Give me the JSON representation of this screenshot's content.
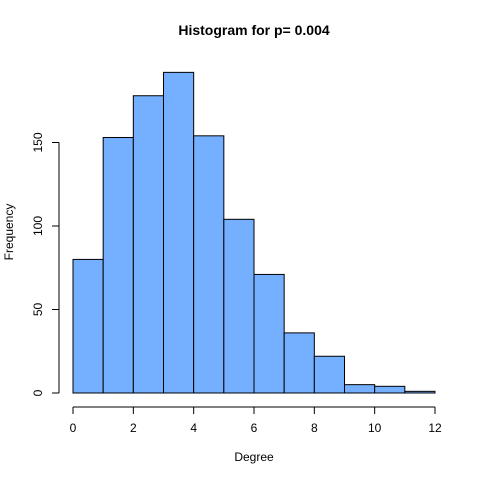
{
  "chart_data": {
    "type": "bar",
    "title": "Histogram for p= 0.004",
    "xlabel": "Degree",
    "ylabel": "Frequency",
    "bins": [
      {
        "from": 0,
        "to": 1,
        "count": 80
      },
      {
        "from": 1,
        "to": 2,
        "count": 153
      },
      {
        "from": 2,
        "to": 3,
        "count": 178
      },
      {
        "from": 3,
        "to": 4,
        "count": 192
      },
      {
        "from": 4,
        "to": 5,
        "count": 154
      },
      {
        "from": 5,
        "to": 6,
        "count": 104
      },
      {
        "from": 6,
        "to": 7,
        "count": 71
      },
      {
        "from": 7,
        "to": 8,
        "count": 36
      },
      {
        "from": 8,
        "to": 9,
        "count": 22
      },
      {
        "from": 9,
        "to": 10,
        "count": 5
      },
      {
        "from": 10,
        "to": 11,
        "count": 4
      },
      {
        "from": 11,
        "to": 12,
        "count": 1
      }
    ],
    "xlim": [
      0,
      12
    ],
    "ylim": [
      0,
      200
    ],
    "x_ticks": [
      "0",
      "2",
      "4",
      "6",
      "8",
      "10",
      "12"
    ],
    "y_ticks": [
      "0",
      "50",
      "100",
      "150"
    ],
    "bar_color": "#74b0ff",
    "grid": false,
    "legend": "none"
  }
}
